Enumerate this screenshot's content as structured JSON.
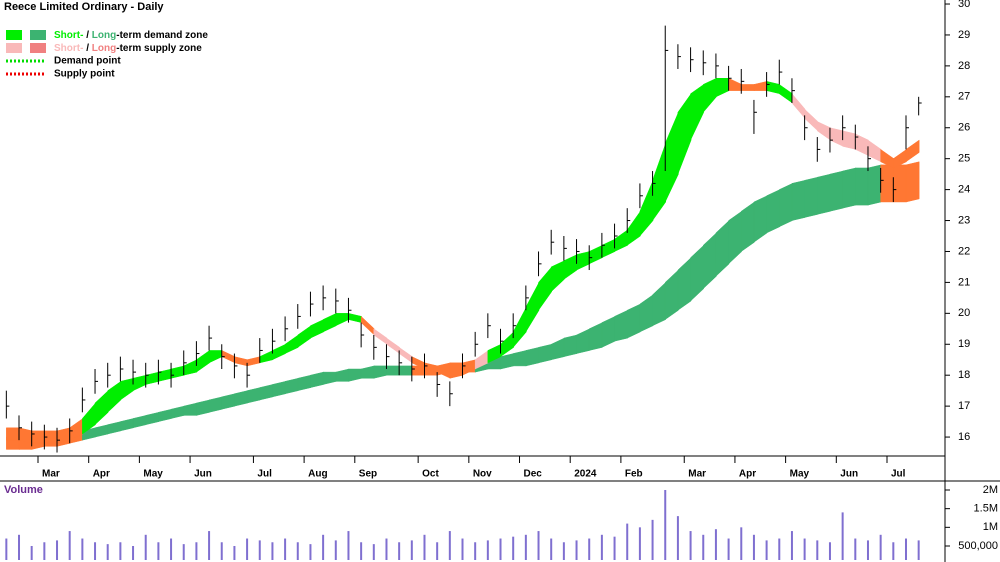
{
  "chart_data": {
    "type": "hlc",
    "title": "Reece Limited Ordinary - Daily",
    "categories": [
      null,
      null,
      null,
      "Mar",
      null,
      null,
      null,
      "Apr",
      null,
      null,
      null,
      "May",
      null,
      null,
      null,
      "Jun",
      null,
      null,
      null,
      null,
      "Jul",
      null,
      null,
      null,
      "Aug",
      null,
      null,
      null,
      "Sep",
      null,
      null,
      null,
      null,
      "Oct",
      null,
      null,
      null,
      "Nov",
      null,
      null,
      null,
      "Dec",
      null,
      null,
      null,
      "2024",
      null,
      null,
      null,
      "Feb",
      null,
      null,
      null,
      null,
      "Mar",
      null,
      null,
      null,
      "Apr",
      null,
      null,
      null,
      "May",
      null,
      null,
      null,
      "Jun",
      null,
      null,
      null,
      "Jul",
      null,
      null
    ],
    "high": [
      17.5,
      16.7,
      16.5,
      16.4,
      16.3,
      16.6,
      17.6,
      18.2,
      18.4,
      18.6,
      18.5,
      18.4,
      18.5,
      18.4,
      18.8,
      19.1,
      19.6,
      19.0,
      18.7,
      18.4,
      19.2,
      19.5,
      19.9,
      20.3,
      20.7,
      20.9,
      20.8,
      20.5,
      19.7,
      19.3,
      19.0,
      18.8,
      18.6,
      18.7,
      18.1,
      17.8,
      18.7,
      19.4,
      20.0,
      19.5,
      20.0,
      20.9,
      22.0,
      22.7,
      22.5,
      22.4,
      22.2,
      22.6,
      22.9,
      23.4,
      24.2,
      24.6,
      29.3,
      28.7,
      28.6,
      28.5,
      28.4,
      28.0,
      27.9,
      26.9,
      27.8,
      28.2,
      27.6,
      26.4,
      25.7,
      26.0,
      26.4,
      26.1,
      25.4,
      24.7,
      24.4,
      26.4,
      27.0
    ],
    "low": [
      16.6,
      15.9,
      15.7,
      15.6,
      15.5,
      15.8,
      16.8,
      17.4,
      17.6,
      17.8,
      17.7,
      17.6,
      17.7,
      17.6,
      18.0,
      18.3,
      18.8,
      18.2,
      17.9,
      17.6,
      18.4,
      18.7,
      19.1,
      19.5,
      19.9,
      20.1,
      20.0,
      19.7,
      18.9,
      18.5,
      18.2,
      18.0,
      17.8,
      17.9,
      17.3,
      17.0,
      17.9,
      18.6,
      19.2,
      18.7,
      19.2,
      20.1,
      21.2,
      21.9,
      21.7,
      21.6,
      21.4,
      21.8,
      22.1,
      22.6,
      23.4,
      23.8,
      24.6,
      27.9,
      27.8,
      27.7,
      27.6,
      27.2,
      27.1,
      25.8,
      27.0,
      27.4,
      26.8,
      25.6,
      24.9,
      25.2,
      25.6,
      25.3,
      24.6,
      23.9,
      23.6,
      25.3,
      26.4
    ],
    "close": [
      17.0,
      16.3,
      16.1,
      16.0,
      15.9,
      16.2,
      17.2,
      17.8,
      18.0,
      18.2,
      18.1,
      18.0,
      18.1,
      18.0,
      18.4,
      18.7,
      19.2,
      18.6,
      18.3,
      18.0,
      18.8,
      19.1,
      19.5,
      19.9,
      20.3,
      20.5,
      20.4,
      20.1,
      19.3,
      18.9,
      18.6,
      18.4,
      18.2,
      18.3,
      17.7,
      17.4,
      18.3,
      19.0,
      19.6,
      19.1,
      19.6,
      20.5,
      21.6,
      22.3,
      22.1,
      22.0,
      21.8,
      22.2,
      22.5,
      23.0,
      23.8,
      24.2,
      28.5,
      28.3,
      28.2,
      28.1,
      28.0,
      27.6,
      27.5,
      26.5,
      27.4,
      27.8,
      27.2,
      26.0,
      25.3,
      25.6,
      26.0,
      25.7,
      25.0,
      24.3,
      24.0,
      26.0,
      26.8
    ],
    "price_color": "#000000",
    "ylim": [
      15.42,
      30.13
    ],
    "yticks": [
      16,
      17,
      18,
      19,
      20,
      21,
      22,
      23,
      24,
      25,
      26,
      27,
      28,
      29,
      30
    ],
    "zones": {
      "long": {
        "upper": [
          16.0,
          16.0,
          16.0,
          16.0,
          16.1,
          16.1,
          16.2,
          16.3,
          16.4,
          16.5,
          16.6,
          16.7,
          16.8,
          16.9,
          17.0,
          17.1,
          17.2,
          17.3,
          17.4,
          17.5,
          17.6,
          17.7,
          17.8,
          17.9,
          18.0,
          18.1,
          18.1,
          18.2,
          18.2,
          18.3,
          18.3,
          18.3,
          18.3,
          18.3,
          18.3,
          18.4,
          18.4,
          18.5,
          18.5,
          18.6,
          18.7,
          18.8,
          18.9,
          19.0,
          19.2,
          19.3,
          19.5,
          19.7,
          19.9,
          20.1,
          20.3,
          20.6,
          21.0,
          21.4,
          21.8,
          22.2,
          22.6,
          23.0,
          23.3,
          23.6,
          23.8,
          24.0,
          24.2,
          24.3,
          24.4,
          24.5,
          24.6,
          24.7,
          24.7,
          24.8,
          24.8,
          24.8,
          24.9
        ],
        "lower": [
          15.6,
          15.6,
          15.6,
          15.7,
          15.7,
          15.8,
          15.9,
          16.0,
          16.1,
          16.2,
          16.3,
          16.4,
          16.5,
          16.6,
          16.7,
          16.7,
          16.8,
          16.9,
          17.0,
          17.1,
          17.2,
          17.3,
          17.4,
          17.5,
          17.6,
          17.7,
          17.8,
          17.8,
          17.9,
          17.9,
          18.0,
          18.0,
          18.0,
          18.0,
          18.0,
          18.1,
          18.1,
          18.1,
          18.2,
          18.2,
          18.3,
          18.3,
          18.4,
          18.5,
          18.6,
          18.7,
          18.8,
          18.9,
          19.1,
          19.2,
          19.4,
          19.6,
          19.8,
          20.1,
          20.4,
          20.8,
          21.2,
          21.6,
          22.0,
          22.3,
          22.6,
          22.8,
          23.0,
          23.1,
          23.2,
          23.3,
          23.4,
          23.5,
          23.5,
          23.6,
          23.6,
          23.6,
          23.7
        ],
        "state": [
          "contact",
          "contact",
          "contact",
          "contact",
          "contact",
          "contact",
          "demand",
          "demand",
          "demand",
          "demand",
          "demand",
          "demand",
          "demand",
          "demand",
          "demand",
          "demand",
          "demand",
          "demand",
          "demand",
          "demand",
          "demand",
          "demand",
          "demand",
          "demand",
          "demand",
          "demand",
          "demand",
          "demand",
          "demand",
          "demand",
          "demand",
          "demand",
          "contact",
          "contact",
          "contact",
          "contact",
          "contact",
          "demand",
          "demand",
          "demand",
          "demand",
          "demand",
          "demand",
          "demand",
          "demand",
          "demand",
          "demand",
          "demand",
          "demand",
          "demand",
          "demand",
          "demand",
          "demand",
          "demand",
          "demand",
          "demand",
          "demand",
          "demand",
          "demand",
          "demand",
          "demand",
          "demand",
          "demand",
          "demand",
          "demand",
          "demand",
          "demand",
          "demand",
          "demand",
          "contact",
          "contact",
          "contact",
          "demand"
        ],
        "state_colors": {
          "demand": "#3cb371",
          "supply": "#f08080",
          "contact": "#ff7733"
        }
      },
      "short": {
        "upper": [
          16.3,
          16.3,
          16.2,
          16.2,
          16.2,
          16.3,
          16.6,
          17.1,
          17.5,
          17.8,
          17.9,
          18.0,
          18.1,
          18.2,
          18.3,
          18.5,
          18.8,
          18.8,
          18.6,
          18.5,
          18.6,
          18.8,
          19.0,
          19.3,
          19.6,
          19.8,
          20.0,
          20.0,
          19.9,
          19.5,
          19.2,
          18.9,
          18.6,
          18.4,
          18.3,
          18.1,
          18.2,
          18.5,
          18.8,
          19.0,
          19.4,
          20.2,
          21.0,
          21.5,
          21.7,
          21.9,
          22.0,
          22.2,
          22.4,
          22.7,
          23.3,
          24.3,
          25.5,
          26.5,
          27.1,
          27.4,
          27.6,
          27.6,
          27.4,
          27.4,
          27.5,
          27.4,
          27.1,
          26.6,
          26.2,
          26.0,
          25.9,
          25.8,
          25.6,
          25.3,
          25.0,
          25.3,
          25.6
        ],
        "lower": [
          15.9,
          15.9,
          15.8,
          15.8,
          15.8,
          15.9,
          16.1,
          16.4,
          16.8,
          17.2,
          17.5,
          17.7,
          17.8,
          17.9,
          18.0,
          18.1,
          18.4,
          18.6,
          18.4,
          18.3,
          18.4,
          18.5,
          18.7,
          18.9,
          19.2,
          19.4,
          19.6,
          19.8,
          19.7,
          19.3,
          19.0,
          18.7,
          18.4,
          18.2,
          18.1,
          17.9,
          18.0,
          18.2,
          18.4,
          18.6,
          18.9,
          19.4,
          20.1,
          20.7,
          21.1,
          21.4,
          21.6,
          21.8,
          22.0,
          22.2,
          22.5,
          23.0,
          23.6,
          24.5,
          25.6,
          26.5,
          27.0,
          27.2,
          27.2,
          27.2,
          27.2,
          27.1,
          26.8,
          26.3,
          25.9,
          25.6,
          25.4,
          25.3,
          25.1,
          24.9,
          24.7,
          24.9,
          25.2
        ],
        "state": [
          "contact",
          "contact",
          "contact",
          "contact",
          "contact",
          "contact",
          "demand",
          "demand",
          "demand",
          "demand",
          "demand",
          "demand",
          "demand",
          "demand",
          "demand",
          "demand",
          "demand",
          "contact",
          "contact",
          "contact",
          "demand",
          "demand",
          "demand",
          "demand",
          "demand",
          "demand",
          "demand",
          "demand",
          "contact",
          "supply",
          "supply",
          "supply",
          "contact",
          "contact",
          "contact",
          "contact",
          "contact",
          "supply",
          "demand",
          "demand",
          "demand",
          "demand",
          "demand",
          "demand",
          "demand",
          "demand",
          "demand",
          "demand",
          "demand",
          "demand",
          "demand",
          "demand",
          "demand",
          "demand",
          "demand",
          "demand",
          "demand",
          "contact",
          "contact",
          "contact",
          "demand",
          "demand",
          "supply",
          "supply",
          "supply",
          "supply",
          "supply",
          "supply",
          "supply",
          "contact",
          "contact",
          "contact",
          "contact"
        ],
        "state_colors": {
          "demand": "#00ee00",
          "supply": "#f9b9b9",
          "contact": "#ff7733"
        }
      }
    },
    "legend": [
      {
        "state": "demand",
        "parts": [
          "Short-",
          " / ",
          "Long",
          "-term demand zone"
        ]
      },
      {
        "state": "supply",
        "parts": [
          "Short-",
          " / ",
          "Long",
          "-term supply zone"
        ]
      },
      {
        "line_color": "#00dd00",
        "text": "Demand point"
      },
      {
        "line_color": "#ee0000",
        "text": "Supply point"
      }
    ],
    "volume": {
      "label": "Volume",
      "color": "#7f6fd0",
      "values": [
        700000,
        800000,
        500000,
        600000,
        650000,
        900000,
        700000,
        600000,
        550000,
        600000,
        500000,
        800000,
        600000,
        700000,
        550000,
        600000,
        900000,
        600000,
        500000,
        700000,
        650000,
        600000,
        700000,
        600000,
        550000,
        800000,
        650000,
        900000,
        600000,
        550000,
        700000,
        600000,
        650000,
        800000,
        600000,
        900000,
        700000,
        600000,
        650000,
        700000,
        750000,
        800000,
        900000,
        700000,
        600000,
        650000,
        700000,
        800000,
        750000,
        1100000,
        1000000,
        1200000,
        2000000,
        1300000,
        900000,
        800000,
        950000,
        700000,
        1000000,
        800000,
        650000,
        700000,
        900000,
        700000,
        650000,
        600000,
        1400000,
        700000,
        650000,
        800000,
        600000,
        700000,
        650000
      ],
      "ylim": [
        125000,
        2214000
      ],
      "yticks": [
        {
          "value": 500000,
          "label": "500,000"
        },
        {
          "value": 1000000,
          "label": "1M"
        },
        {
          "value": 1500000,
          "label": "1.5M"
        },
        {
          "value": 2000000,
          "label": "2M"
        }
      ]
    }
  }
}
